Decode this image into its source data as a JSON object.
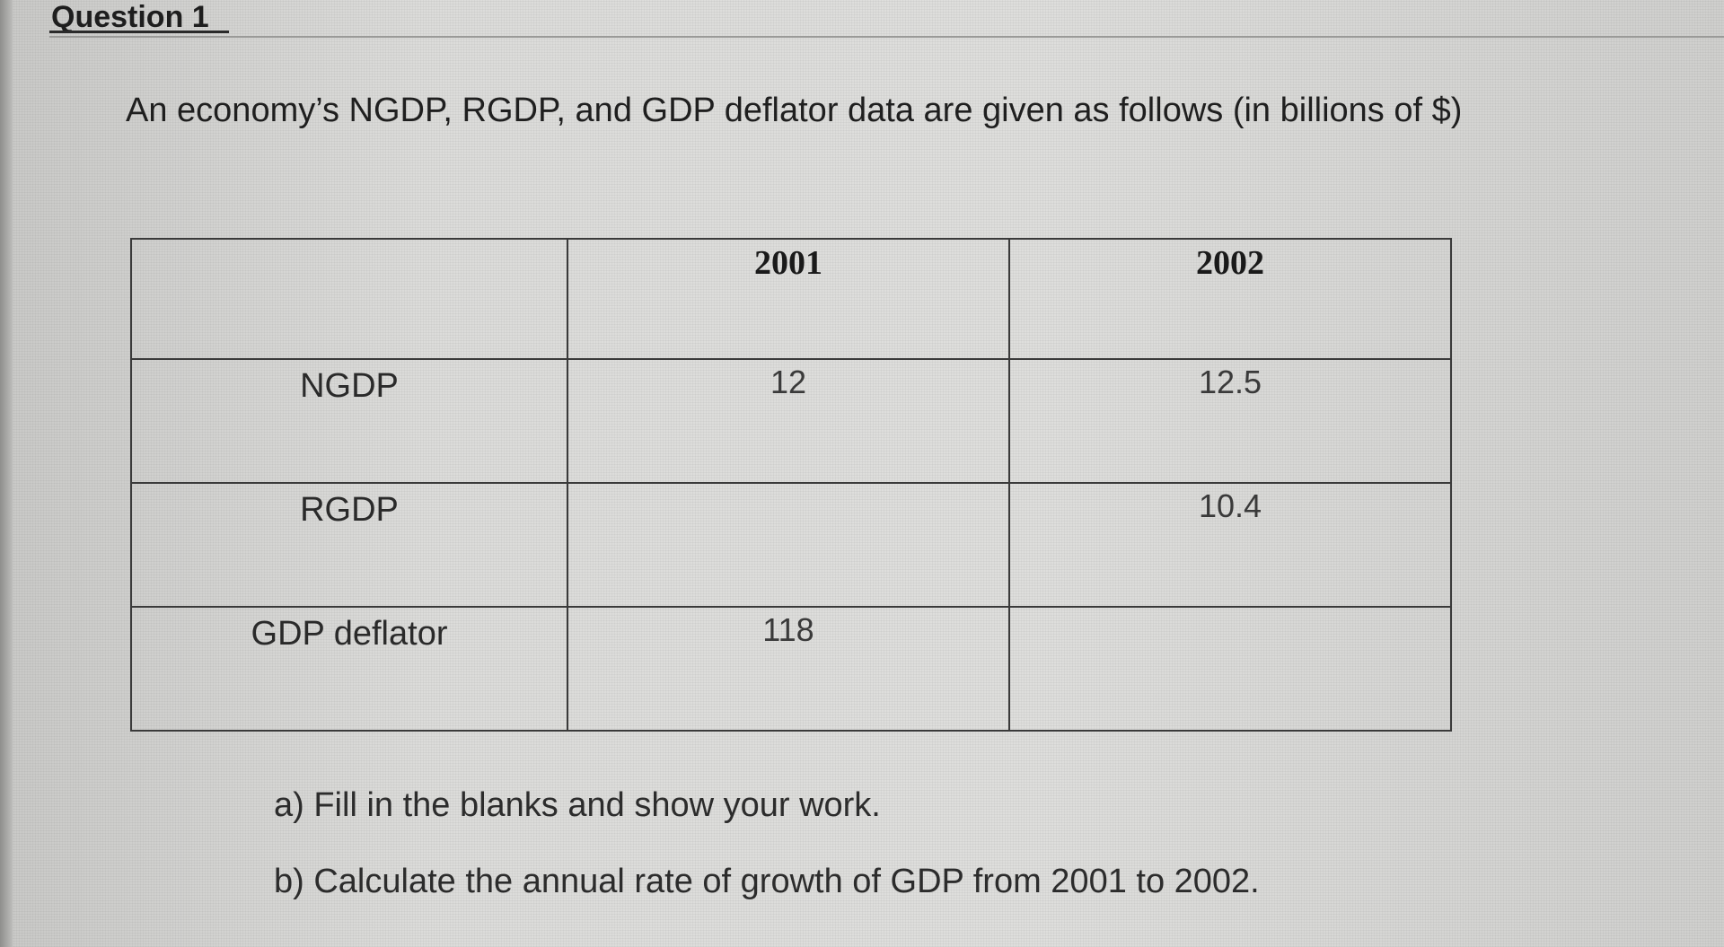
{
  "question": {
    "title": "Question 1",
    "intro": "An economy’s NGDP, RGDP, and GDP deflator data are given as follows (in billions of $)"
  },
  "table": {
    "headers": [
      "",
      "2001",
      "2002"
    ],
    "rows": [
      {
        "label": "NGDP",
        "values": [
          "12",
          "12.5"
        ]
      },
      {
        "label": "RGDP",
        "values": [
          "",
          "10.4"
        ]
      },
      {
        "label": "GDP deflator",
        "values": [
          "118",
          ""
        ]
      }
    ]
  },
  "tasks": {
    "a": "a) Fill in the blanks and show your work.",
    "b": "b) Calculate the annual rate of growth of GDP from 2001 to 2002."
  }
}
